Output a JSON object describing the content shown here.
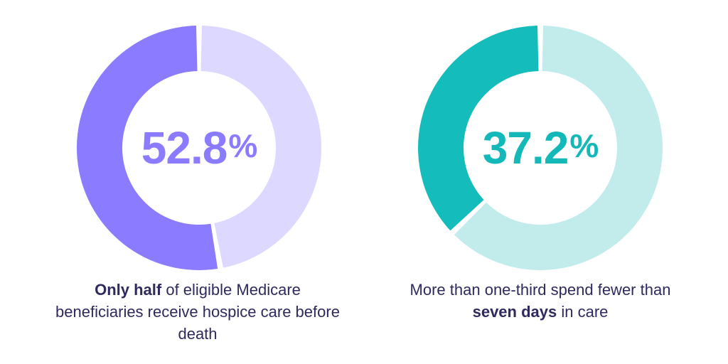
{
  "chart_data": [
    {
      "type": "pie",
      "value": 52.8,
      "unit": "%",
      "display_number": "52.8",
      "display_unit": "%",
      "colors": {
        "filled": "#8b7cff",
        "remaining": "#dcd8ff",
        "label": "#8b7cff"
      },
      "caption": {
        "bold": "Only half",
        "text": " of eligible Medicare beneficiaries receive hospice care before death"
      }
    },
    {
      "type": "pie",
      "value": 37.2,
      "unit": "%",
      "display_number": "37.2",
      "display_unit": "%",
      "colors": {
        "filled": "#14bcbc",
        "remaining": "#c2ecec",
        "label": "#14b8b8"
      },
      "caption": {
        "before": "More than one-third spend fewer than ",
        "bold": "seven days",
        "after": " in care"
      }
    }
  ]
}
